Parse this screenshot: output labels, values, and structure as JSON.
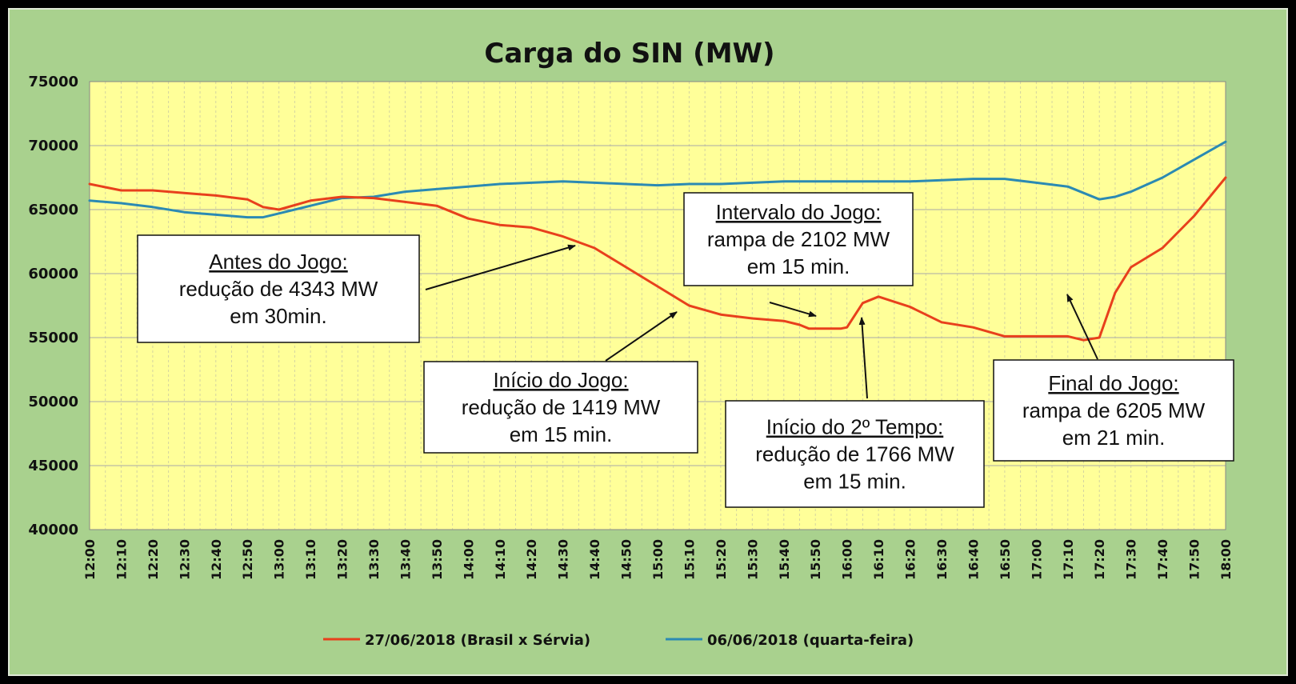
{
  "chart_data": {
    "type": "line",
    "title": "Carga do SIN (MW)",
    "xlabel": "",
    "ylabel": "",
    "ylim": [
      40000,
      75000
    ],
    "yticks": [
      "75000",
      "70000",
      "65000",
      "60000",
      "55000",
      "50000",
      "45000",
      "40000"
    ],
    "xticks": [
      "12:00",
      "12:10",
      "12:20",
      "12:30",
      "12:40",
      "12:50",
      "13:00",
      "13:10",
      "13:20",
      "13:30",
      "13:40",
      "13:50",
      "14:00",
      "14:10",
      "14:20",
      "14:30",
      "14:40",
      "14:50",
      "15:00",
      "15:10",
      "15:20",
      "15:30",
      "15:40",
      "15:50",
      "16:00",
      "16:10",
      "16:20",
      "16:30",
      "16:40",
      "16:50",
      "17:00",
      "17:10",
      "17:20",
      "17:30",
      "17:40",
      "17:50",
      "18:00"
    ],
    "grid": true,
    "legend_position": "bottom",
    "plot_background": "#ffff99",
    "outer_background": "#a9d18e",
    "x_minutes": [
      0,
      10,
      20,
      30,
      40,
      50,
      55,
      60,
      70,
      80,
      90,
      100,
      110,
      120,
      130,
      140,
      150,
      160,
      170,
      180,
      190,
      200,
      210,
      220,
      225,
      228,
      230,
      235,
      238,
      240,
      245,
      250,
      260,
      270,
      280,
      290,
      300,
      310,
      315,
      320,
      325,
      330,
      340,
      350,
      360
    ],
    "series": [
      {
        "name": "27/06/2018 (Brasil x Sérvia)",
        "color": "#e8401c",
        "values": [
          67000,
          66500,
          66500,
          66300,
          66100,
          65800,
          65200,
          65000,
          65700,
          66000,
          65900,
          65600,
          65300,
          64300,
          63800,
          63600,
          62900,
          62000,
          60500,
          59000,
          57500,
          56800,
          56500,
          56300,
          56000,
          55700,
          55700,
          55700,
          55700,
          55800,
          57700,
          58200,
          57400,
          56200,
          55800,
          55100,
          55100,
          55100,
          54800,
          55000,
          58500,
          60500,
          62000,
          64500,
          67500
        ]
      },
      {
        "name": "06/06/2018 (quarta-feira)",
        "color": "#2b8ab3",
        "values": [
          65700,
          65500,
          65200,
          64800,
          64600,
          64400,
          64400,
          64700,
          65300,
          65900,
          66000,
          66400,
          66600,
          66800,
          67000,
          67100,
          67200,
          67100,
          67000,
          66900,
          67000,
          67000,
          67100,
          67200,
          67200,
          67200,
          67200,
          67200,
          67200,
          67200,
          67200,
          67200,
          67200,
          67300,
          67400,
          67400,
          67100,
          66800,
          66300,
          65800,
          66000,
          66400,
          67500,
          68900,
          70300
        ]
      }
    ],
    "annotations": [
      {
        "lines": [
          "Antes do Jogo:",
          "redução de 4343 MW",
          "em 30min."
        ]
      },
      {
        "lines": [
          "Início do Jogo:",
          "redução de 1419 MW",
          "em 15 min."
        ]
      },
      {
        "lines": [
          "Intervalo do Jogo:",
          "rampa de 2102 MW",
          "em 15 min."
        ]
      },
      {
        "lines": [
          "Início do 2º Tempo:",
          "redução de 1766 MW",
          "em 15 min."
        ]
      },
      {
        "lines": [
          "Final do Jogo:",
          "rampa de 6205 MW",
          "em 21 min."
        ]
      }
    ]
  }
}
